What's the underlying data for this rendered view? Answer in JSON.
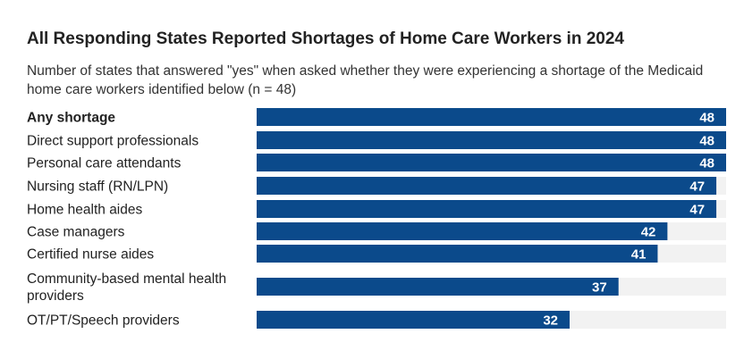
{
  "title": "All Responding States Reported Shortages of Home Care Workers in 2024",
  "subtitle": "Number of states that answered \"yes\" when asked whether they were experiencing a shortage of the Medicaid home care workers identified below (n = 48)",
  "colors": {
    "bar": "#0b4a8b",
    "track": "#f2f2f2",
    "value_text": "#ffffff"
  },
  "chart_data": {
    "type": "bar",
    "orientation": "horizontal",
    "categories": [
      "Any shortage",
      "Direct support professionals",
      "Personal care attendants",
      "Nursing staff (RN/LPN)",
      "Home health aides",
      "Case managers",
      "Certified nurse aides",
      "Community-based mental health providers",
      "OT/PT/Speech providers"
    ],
    "category_lines": [
      [
        "Any shortage"
      ],
      [
        "Direct support professionals"
      ],
      [
        "Personal care attendants"
      ],
      [
        "Nursing staff (RN/LPN)"
      ],
      [
        "Home health aides"
      ],
      [
        "Case managers"
      ],
      [
        "Certified nurse aides"
      ],
      [
        "Community-based mental health",
        "providers"
      ],
      [
        "OT/PT/Speech providers"
      ]
    ],
    "values": [
      48,
      48,
      48,
      47,
      47,
      42,
      41,
      37,
      32
    ],
    "xlim": [
      0,
      48
    ],
    "emphasized_category": "Any shortage",
    "data_labels": true,
    "grid": false,
    "legend": "none"
  }
}
